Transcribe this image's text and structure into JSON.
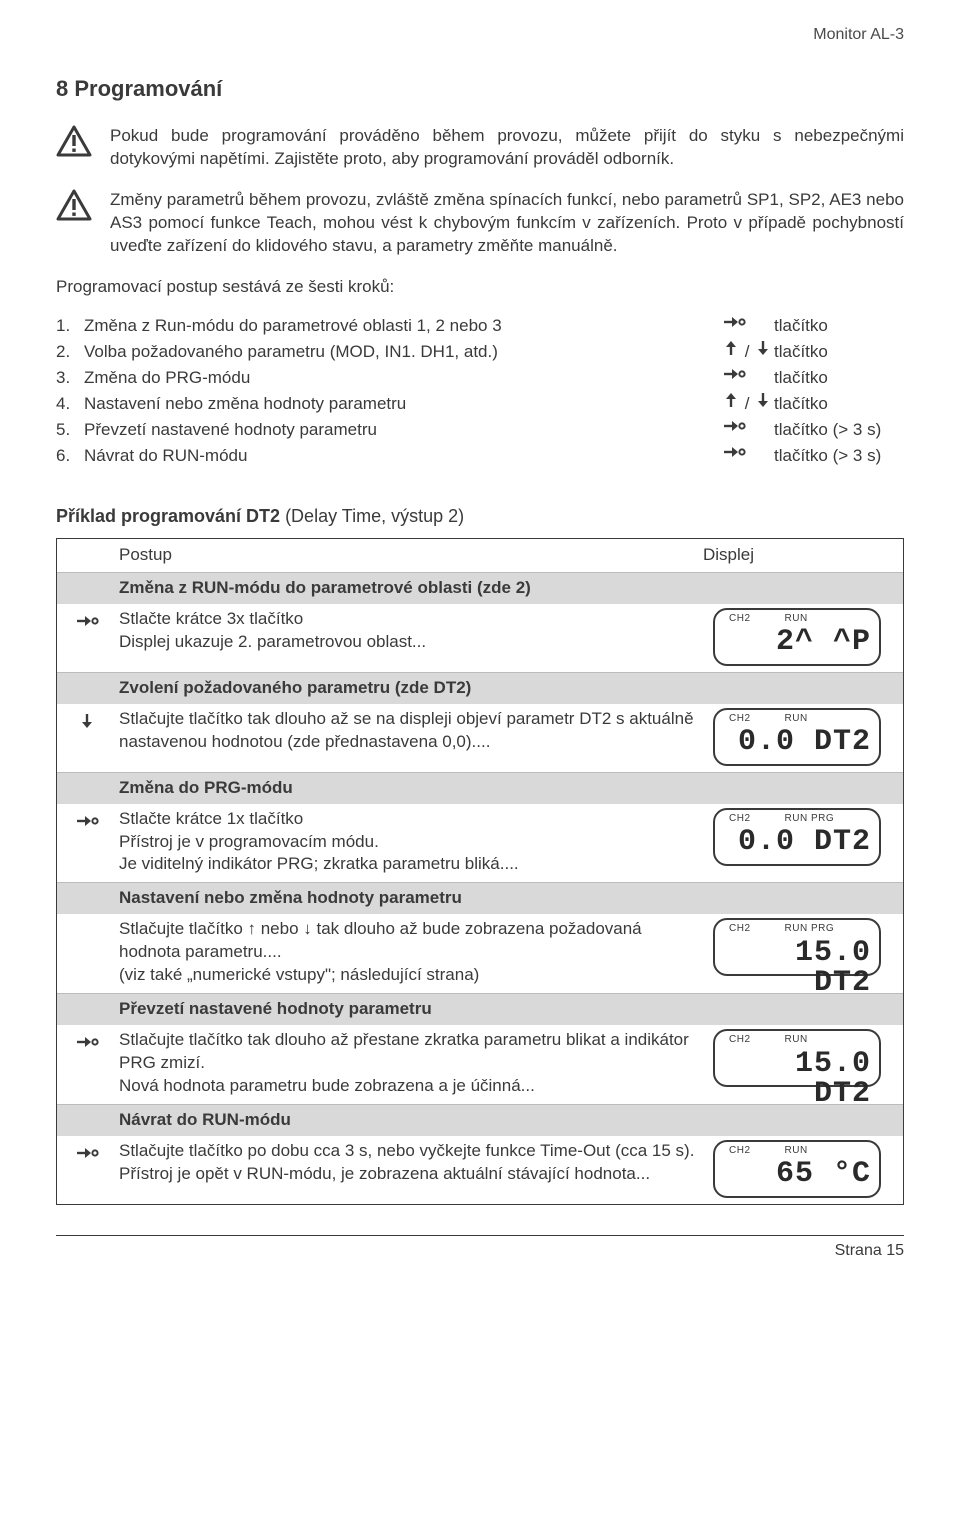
{
  "header": {
    "doc_title": "Monitor AL-3"
  },
  "title": "8 Programování",
  "warnings": [
    "Pokud bude programování prováděno během provozu, můžete přijít do styku s nebezpečnými dotykovými napětími. Zajistěte proto, aby programování prováděl odborník.",
    "Změny parametrů během provozu, zvláště změna spínacích funkcí, nebo parametrů SP1, SP2, AE3 nebo AS3 pomocí funkce Teach, mohou vést k chybovým funkcím v zařízeních. Proto v případě pochybností uveďte zařízení do  klidového stavu, a parametry změňte manuálně."
  ],
  "intro": "Programovací postup sestává ze šesti kroků:",
  "steps": [
    {
      "n": "1.",
      "label": "Změna z Run-módu do parametrové oblasti 1, 2 nebo 3",
      "sym": "enter",
      "btn": "tlačítko"
    },
    {
      "n": "2.",
      "label": "Volba požadovaného parametru  (MOD, IN1. DH1, atd.)",
      "sym": "updown",
      "btn": "tlačítko"
    },
    {
      "n": "3.",
      "label": "Změna do PRG-módu",
      "sym": "enter",
      "btn": "tlačítko"
    },
    {
      "n": "4.",
      "label": "Nastavení nebo změna hodnoty parametru",
      "sym": "updown",
      "btn": "tlačítko"
    },
    {
      "n": "5.",
      "label": "Převzetí nastavené hodnoty parametru",
      "sym": "enter",
      "btn": "tlačítko (> 3 s)"
    },
    {
      "n": "6.",
      "label": "Návrat do RUN-módu",
      "sym": "enter",
      "btn": "tlačítko (> 3 s)"
    }
  ],
  "example": {
    "bold": "Příklad programování DT2",
    "rest": " (Delay Time, výstup 2)"
  },
  "table": {
    "col1": "Postup",
    "col2": "Displej",
    "rows": [
      {
        "type": "section",
        "text": "Změna z RUN-módu do parametrové oblasti (zde 2)"
      },
      {
        "type": "step",
        "icon": "enter",
        "lines": [
          "Stlačte krátce 3x tlačítko",
          "Displej ukazuje 2. parametrovou oblast..."
        ],
        "lcd": {
          "ind": [
            "CH2",
            "RUN"
          ],
          "val": "2^ ^P"
        }
      },
      {
        "type": "section",
        "text": "Zvolení požadovaného parametru (zde DT2)"
      },
      {
        "type": "step",
        "icon": "down",
        "lines": [
          "Stlačujte tlačítko tak dlouho až se na displeji objeví parametr DT2 s aktuálně nastavenou hodnotou (zde přednastavena 0,0)...."
        ],
        "lcd": {
          "ind": [
            "CH2",
            "RUN"
          ],
          "val": "0.0 DT2"
        }
      },
      {
        "type": "section",
        "text": "Změna do PRG-módu"
      },
      {
        "type": "step",
        "icon": "enter",
        "lines": [
          "Stlačte krátce 1x tlačítko",
          "Přístroj je v programovacím módu.",
          "Je viditelný indikátor PRG; zkratka parametru bliká...."
        ],
        "lcd": {
          "ind": [
            "CH2",
            "RUN PRG"
          ],
          "val": "0.0 DT2"
        }
      },
      {
        "type": "section",
        "text": "Nastavení nebo změna hodnoty parametru"
      },
      {
        "type": "step",
        "icon": "",
        "lines": [
          "Stlačujte tlačítko ↑ nebo ↓ tak dlouho až bude zobrazena požadovaná hodnota parametru....",
          "(viz také „numerické vstupy\"; následující strana)"
        ],
        "lcd": {
          "ind": [
            "CH2",
            "RUN PRG"
          ],
          "val": "15.0 DT2"
        }
      },
      {
        "type": "section",
        "text": "Převzetí nastavené hodnoty parametru"
      },
      {
        "type": "step",
        "icon": "enter",
        "lines": [
          "Stlačujte tlačítko tak dlouho až přestane zkratka parametru blikat a indikátor PRG zmizí.",
          "Nová hodnota parametru bude zobrazena a je účinná..."
        ],
        "lcd": {
          "ind": [
            "CH2",
            "RUN"
          ],
          "val": "15.0 DT2"
        }
      },
      {
        "type": "section",
        "text": "Návrat do RUN-módu"
      },
      {
        "type": "step",
        "icon": "enter",
        "lines": [
          "Stlačujte tlačítko po dobu cca 3 s, nebo vyčkejte funkce Time-Out (cca 15 s). Přístroj je opět v RUN-módu, je zobrazena aktuální stávající hodnota..."
        ],
        "lcd": {
          "ind": [
            "CH2",
            "RUN"
          ],
          "val": "65 °C"
        }
      }
    ]
  },
  "footer": {
    "page": "Strana 15"
  },
  "icons": {
    "warning_stroke": "#3a3a3a"
  }
}
